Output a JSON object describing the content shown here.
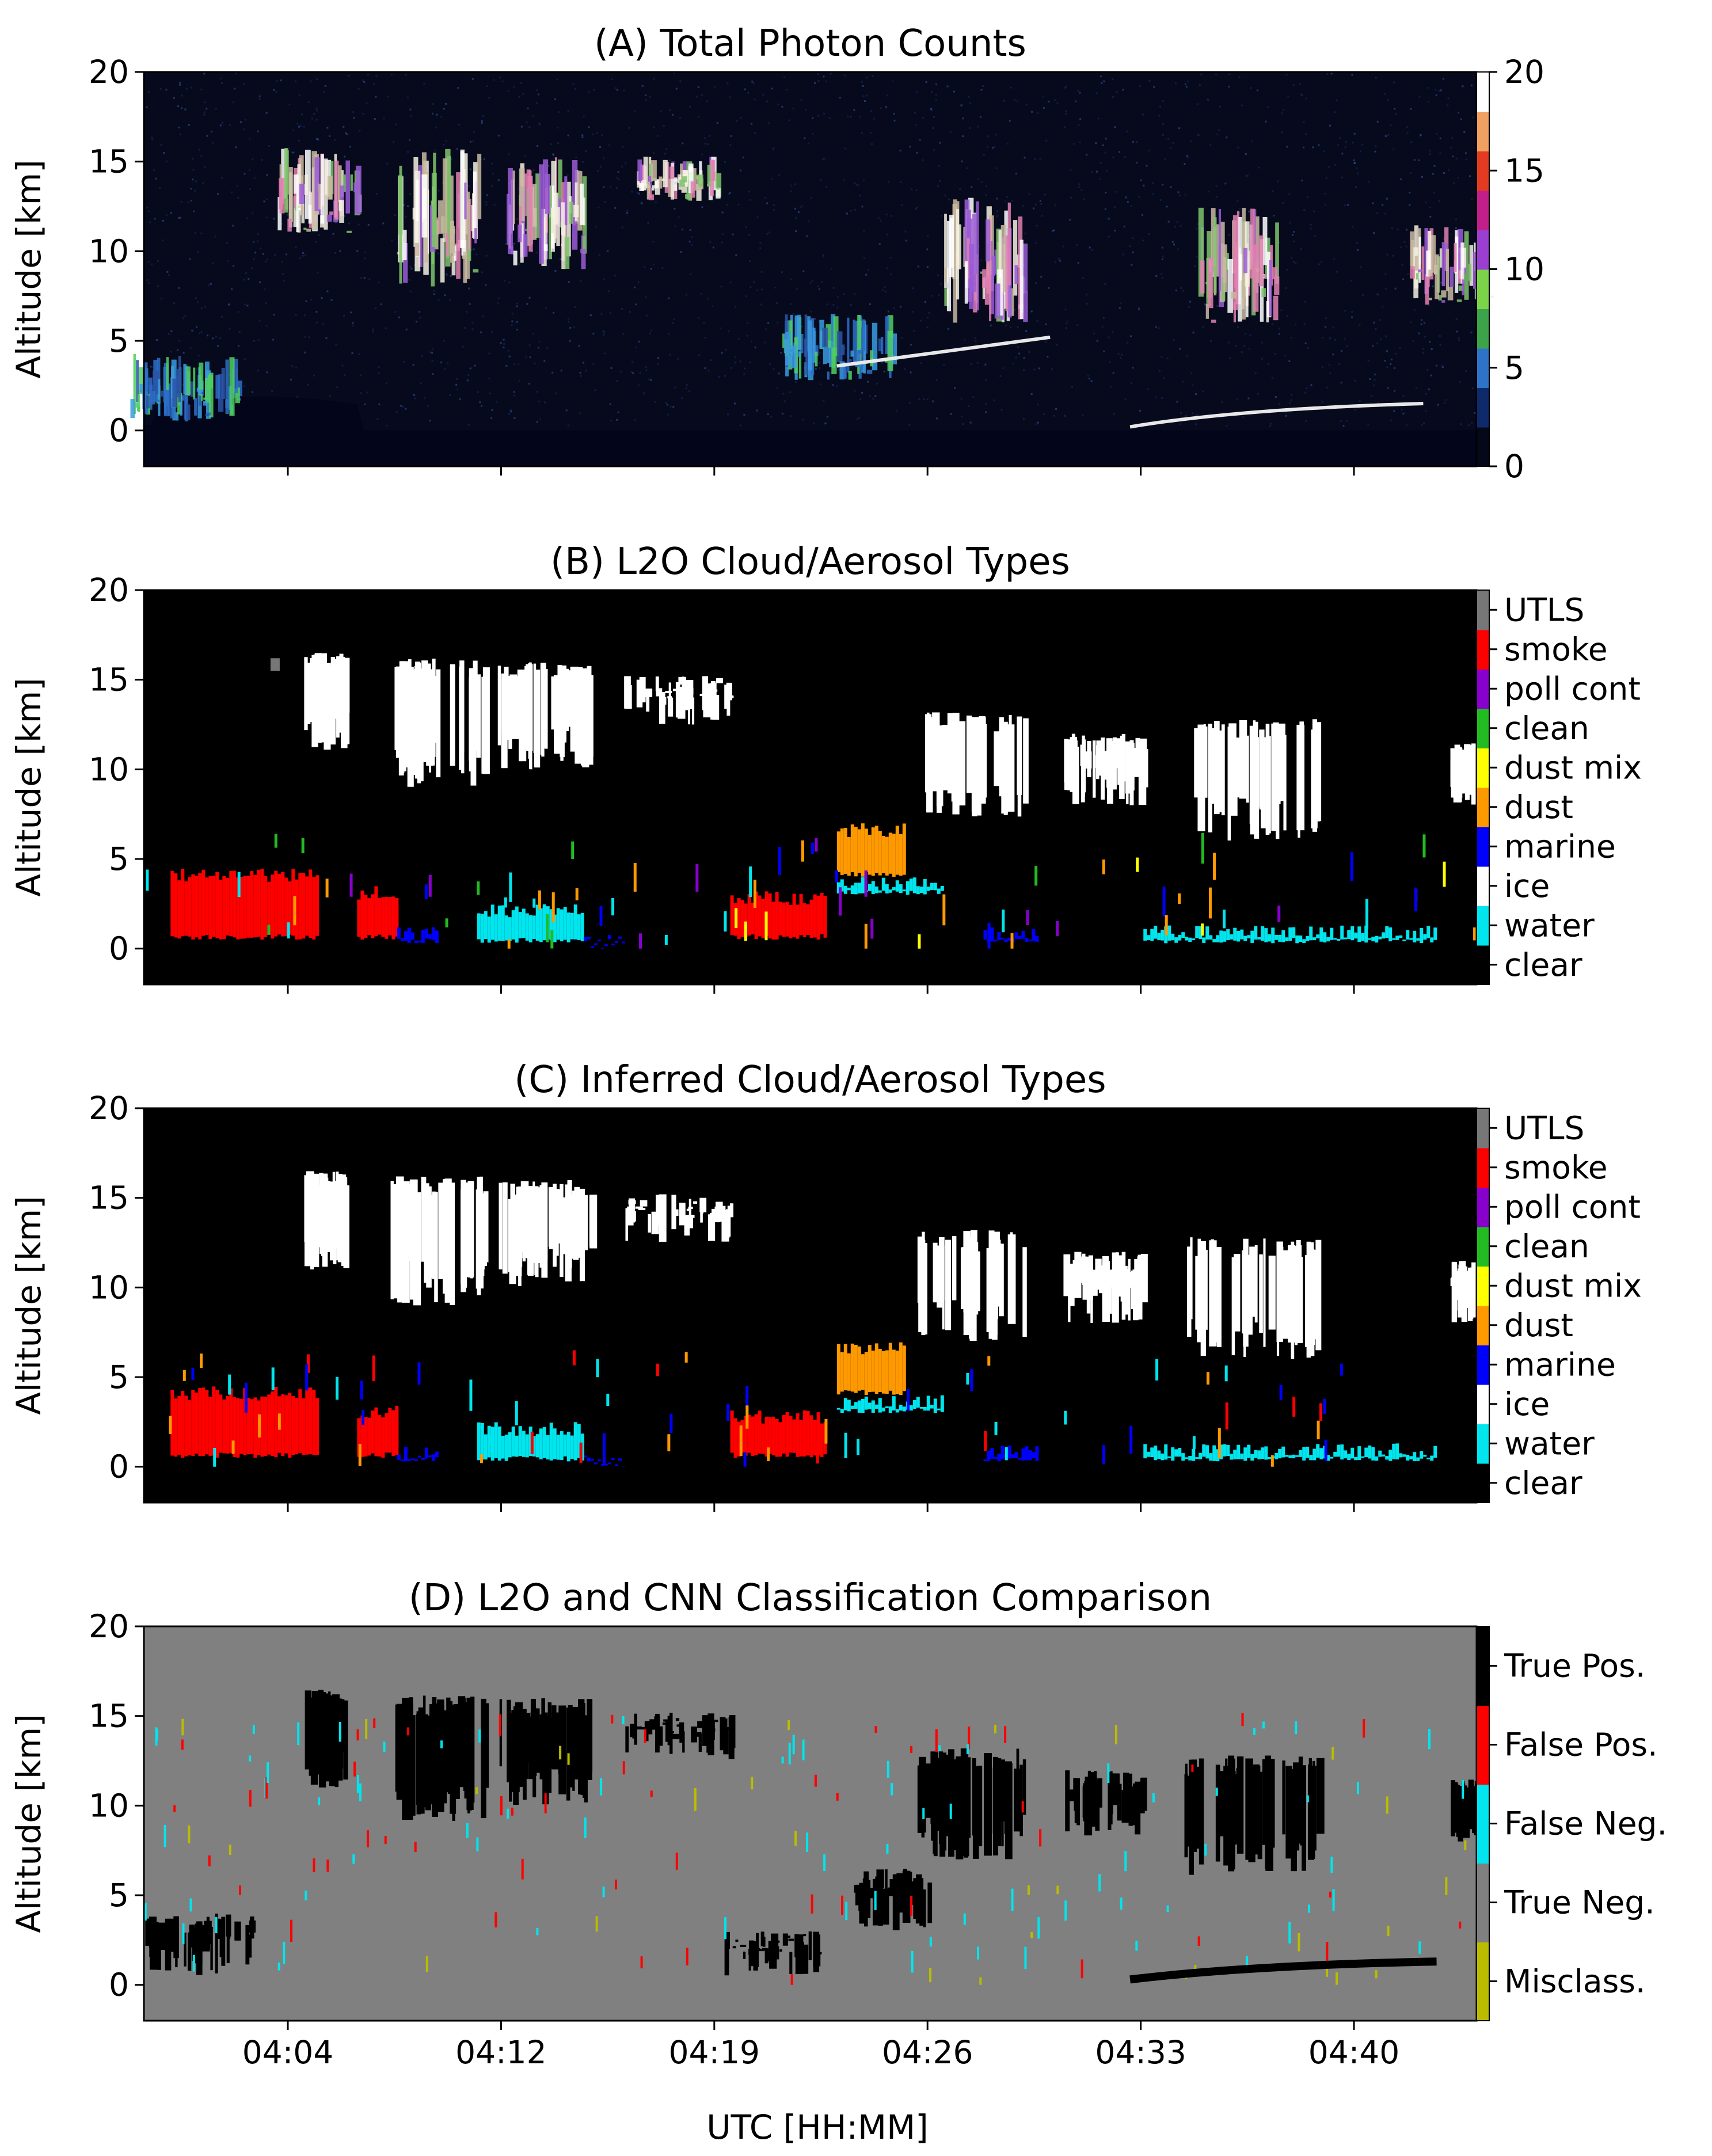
{
  "figure": {
    "xlabel": "UTC [HH:MM]",
    "x_tick_labels": [
      "04:04",
      "04:12",
      "04:19",
      "04:26",
      "04:33",
      "04:40"
    ]
  },
  "chart_data": [
    {
      "type": "heatmap",
      "title": "(A) Total Photon Counts",
      "xlabel": "UTC [HH:MM]",
      "ylabel": "Altitude [km]",
      "ylim": [
        -2,
        20
      ],
      "y_ticks": [
        0,
        5,
        10,
        15,
        20
      ],
      "colorbar": {
        "label": "",
        "range": [
          0,
          20
        ],
        "ticks": [
          0,
          5,
          10,
          15,
          20
        ]
      },
      "features": [
        {
          "t": 0.03,
          "base": 0.5,
          "top": 4.3,
          "kind": "aerosol"
        },
        {
          "t": 0.13,
          "base": 11.0,
          "top": 15.8,
          "kind": "cloud"
        },
        {
          "t": 0.22,
          "base": 8.0,
          "top": 15.7,
          "kind": "cloud"
        },
        {
          "t": 0.3,
          "base": 9.0,
          "top": 15.3,
          "kind": "cloud"
        },
        {
          "t": 0.4,
          "base": 12.8,
          "top": 15.3,
          "kind": "cloud"
        },
        {
          "t": 0.52,
          "base": 2.8,
          "top": 6.5,
          "kind": "aerosol"
        },
        {
          "t": 0.63,
          "base": 6.0,
          "top": 13.0,
          "kind": "cloud"
        },
        {
          "t": 0.82,
          "base": 6.0,
          "top": 12.5,
          "kind": "cloud"
        },
        {
          "t": 0.98,
          "base": 7.0,
          "top": 11.5,
          "kind": "cloud"
        }
      ]
    },
    {
      "type": "heatmap",
      "title": "(B) L2O Cloud/Aerosol Types",
      "ylabel": "Altitude [km]",
      "ylim": [
        -2,
        20
      ],
      "y_ticks": [
        0,
        5,
        10,
        15,
        20
      ],
      "categories": [
        "clear",
        "water",
        "ice",
        "marine",
        "dust",
        "dust mix",
        "clean",
        "poll cont",
        "smoke",
        "UTLS"
      ],
      "category_colors": [
        "#000000",
        "#00e5ee",
        "#ffffff",
        "#0000ff",
        "#ff9900",
        "#ffff00",
        "#22bb22",
        "#8800cc",
        "#ff0000",
        "#777777"
      ]
    },
    {
      "type": "heatmap",
      "title": "(C) Inferred Cloud/Aerosol Types",
      "ylabel": "Altitude [km]",
      "ylim": [
        -2,
        20
      ],
      "y_ticks": [
        0,
        5,
        10,
        15,
        20
      ],
      "categories": [
        "clear",
        "water",
        "ice",
        "marine",
        "dust",
        "dust mix",
        "clean",
        "poll cont",
        "smoke",
        "UTLS"
      ],
      "category_colors": [
        "#000000",
        "#00e5ee",
        "#ffffff",
        "#0000ff",
        "#ff9900",
        "#ffff00",
        "#22bb22",
        "#8800cc",
        "#ff0000",
        "#777777"
      ]
    },
    {
      "type": "heatmap",
      "title": "(D) L2O and CNN Classification Comparison",
      "ylabel": "Altitude [km]",
      "ylim": [
        -2,
        20
      ],
      "y_ticks": [
        0,
        5,
        10,
        15,
        20
      ],
      "categories": [
        "Misclass.",
        "True Neg.",
        "False Neg.",
        "False Pos.",
        "True Pos."
      ],
      "category_colors": [
        "#bbbb00",
        "#808080",
        "#00e5ee",
        "#ff0000",
        "#000000"
      ]
    }
  ]
}
